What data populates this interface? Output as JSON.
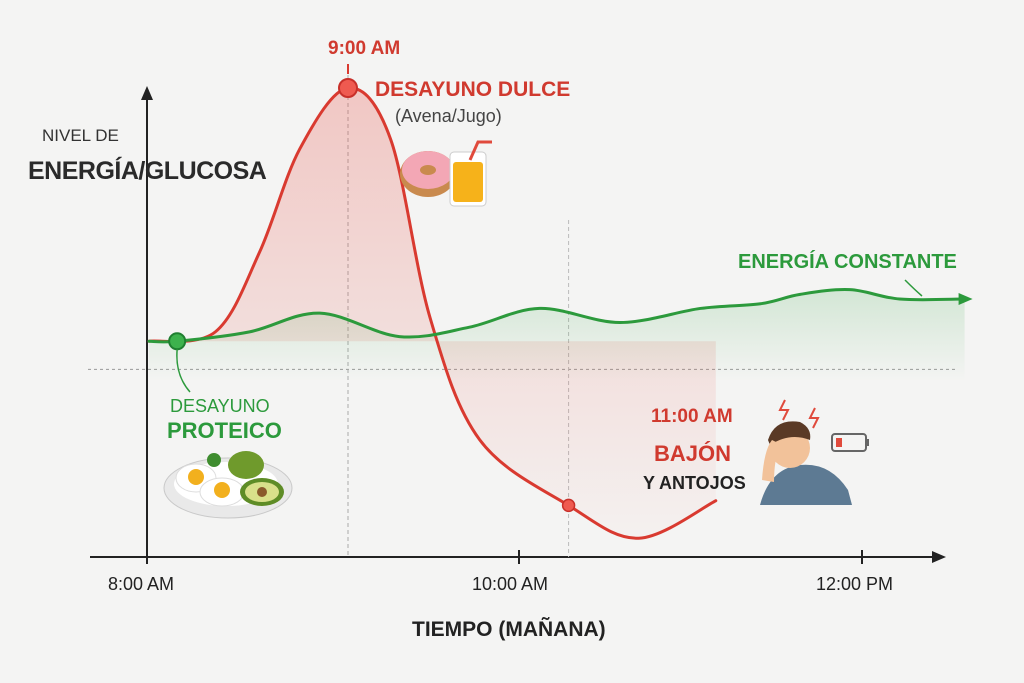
{
  "chart_data": {
    "type": "line",
    "title": "",
    "ylabel_line1": "NIVEL DE",
    "ylabel_line2": "ENERGÍA/GLUCOSA",
    "xlabel": "TIEMPO (MAÑANA)",
    "x_ticks": [
      {
        "hour": 8,
        "label": "8:00 AM"
      },
      {
        "hour": 10,
        "label": "10:00 AM"
      },
      {
        "hour": 12,
        "label": "12:00 PM"
      }
    ],
    "x_unit": "hour of morning",
    "y_unit": "relative level (unlabeled axis)",
    "grid": false,
    "reference_level": 40,
    "series": [
      {
        "name": "DESAYUNO DULCE",
        "color": "#d93a30",
        "points": [
          [
            8.01,
            46
          ],
          [
            8.34,
            48
          ],
          [
            8.56,
            65
          ],
          [
            8.76,
            87
          ],
          [
            9.0,
            100
          ],
          [
            9.25,
            89
          ],
          [
            9.48,
            51
          ],
          [
            9.77,
            25
          ],
          [
            10.29,
            11
          ],
          [
            10.7,
            4
          ],
          [
            11.15,
            12
          ]
        ]
      },
      {
        "name": "ENERGÍA CONSTANTE",
        "color": "#2c9a3c",
        "points": [
          [
            8.01,
            46
          ],
          [
            8.15,
            46
          ],
          [
            8.51,
            48
          ],
          [
            8.86,
            52
          ],
          [
            9.3,
            47
          ],
          [
            9.71,
            49
          ],
          [
            10.12,
            53
          ],
          [
            10.59,
            50
          ],
          [
            11.06,
            53
          ],
          [
            11.41,
            54
          ],
          [
            11.64,
            56
          ],
          [
            11.93,
            57
          ],
          [
            12.22,
            55
          ],
          [
            12.6,
            55
          ]
        ]
      }
    ],
    "annotations": {
      "peak_time": "9:00 AM",
      "sweet_title": "DESAYUNO DULCE",
      "sweet_sub": "(Avena/Jugo)",
      "constant": "ENERGÍA CONSTANTE",
      "protein_line1": "DESAYUNO",
      "protein_line2": "PROTEICO",
      "crash_time": "11:00 AM",
      "crash_title": "BAJÓN",
      "crash_sub": "Y ANTOJOS"
    },
    "icons": [
      "donut-icon",
      "juice-glass-icon",
      "egg-avocado-plate-icon",
      "tired-person-icon",
      "low-battery-icon",
      "lightning-icon"
    ]
  }
}
